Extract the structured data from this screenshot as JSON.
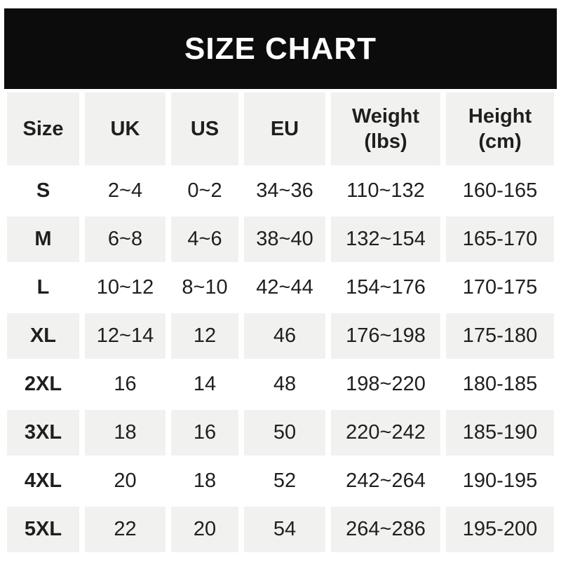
{
  "colors": {
    "banner_bg": "#0c0c0c",
    "banner_text": "#ffffff",
    "row_alt_bg": "#f1f1ef",
    "text_color": "#1f1f1f"
  },
  "table": {
    "header_display": [
      "Size",
      "UK",
      "US",
      "EU",
      "Weight\n(lbs)",
      "Height\n(cm)"
    ]
  },
  "chart_data": {
    "type": "table",
    "title": "SIZE CHART",
    "columns": [
      "Size",
      "UK",
      "US",
      "EU",
      "Weight (lbs)",
      "Height (cm)"
    ],
    "rows": [
      [
        "S",
        "2~4",
        "0~2",
        "34~36",
        "110~132",
        "160-165"
      ],
      [
        "M",
        "6~8",
        "4~6",
        "38~40",
        "132~154",
        "165-170"
      ],
      [
        "L",
        "10~12",
        "8~10",
        "42~44",
        "154~176",
        "170-175"
      ],
      [
        "XL",
        "12~14",
        "12",
        "46",
        "176~198",
        "175-180"
      ],
      [
        "2XL",
        "16",
        "14",
        "48",
        "198~220",
        "180-185"
      ],
      [
        "3XL",
        "18",
        "16",
        "50",
        "220~242",
        "185-190"
      ],
      [
        "4XL",
        "20",
        "18",
        "52",
        "242~264",
        "190-195"
      ],
      [
        "5XL",
        "22",
        "20",
        "54",
        "264~286",
        "195-200"
      ]
    ]
  }
}
